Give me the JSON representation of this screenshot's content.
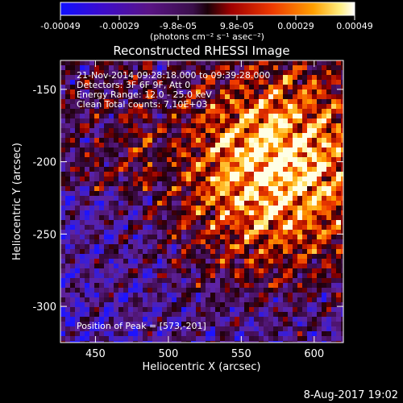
{
  "chart_data": {
    "type": "heatmap",
    "title": "Reconstructed RHESSI Image",
    "xlabel": "Heliocentric X (arcsec)",
    "ylabel": "Heliocentric Y (arcsec)",
    "xlim": [
      426,
      620
    ],
    "ylim": [
      -325,
      -130
    ],
    "x_ticks": [
      450,
      500,
      550,
      600
    ],
    "y_ticks": [
      -150,
      -200,
      -250,
      -300
    ],
    "colorbar": {
      "ticks": [
        "-0.00049",
        "-0.00029",
        "-9.8e-05",
        "9.8e-05",
        "0.00029",
        "0.00049"
      ],
      "units": "(photons cm⁻² s⁻¹ asec⁻²)",
      "range": [
        -0.00049,
        0.00049
      ]
    },
    "annotations": [
      "21-Nov-2014 09:28:18.000 to 09:39:28.000",
      "Detectors: 3F 6F 9F, Att 0",
      "Energy Range: 12.0 - 25.0 keV",
      "Clean     Total counts: 7.10E+03"
    ],
    "peak_label": "Position of Peak = [573,-201]",
    "peak": {
      "x": 573,
      "y": -201
    },
    "date_stamp": "8-Aug-2017 19:02",
    "grid": false
  },
  "colors": {
    "background": "#000000",
    "text": "#ffffff"
  }
}
